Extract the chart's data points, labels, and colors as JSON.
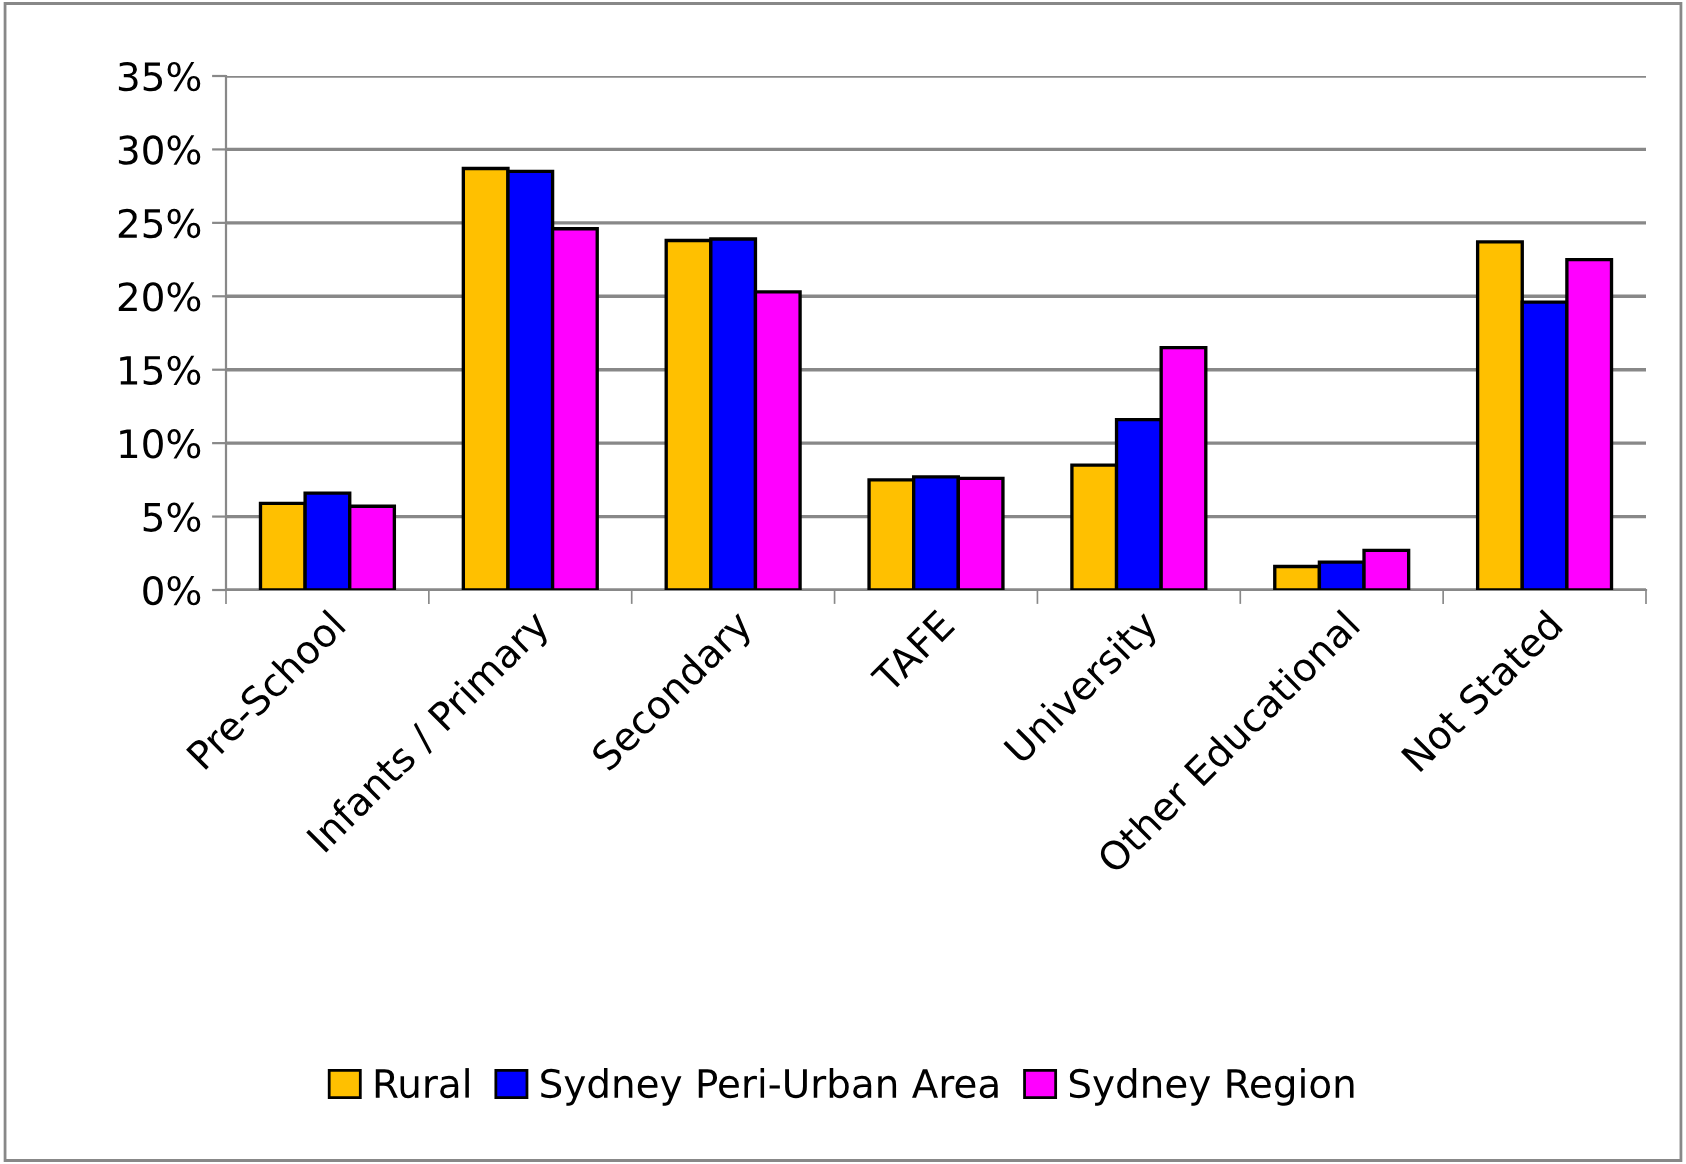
{
  "chart_data": {
    "type": "bar",
    "categories": [
      "Pre-School",
      "Infants / Primary",
      "Secondary",
      "TAFE",
      "University",
      "Other Educational",
      "Not Stated"
    ],
    "series": [
      {
        "name": "Rural",
        "color": "#ffc000",
        "values": [
          5.9,
          28.7,
          23.8,
          7.5,
          8.5,
          1.6,
          23.7
        ]
      },
      {
        "name": "Sydney Peri-Urban Area",
        "color": "#0000ff",
        "values": [
          6.6,
          28.5,
          23.9,
          7.7,
          11.6,
          1.9,
          19.6
        ]
      },
      {
        "name": "Sydney Region",
        "color": "#ff00ff",
        "values": [
          5.7,
          24.6,
          20.3,
          7.6,
          16.5,
          2.7,
          22.5
        ]
      }
    ],
    "ylim": [
      0,
      35
    ],
    "yticks": [
      {
        "value": 0,
        "label": "0%"
      },
      {
        "value": 5,
        "label": "5%"
      },
      {
        "value": 10,
        "label": "10%"
      },
      {
        "value": 15,
        "label": "15%"
      },
      {
        "value": 20,
        "label": "20%"
      },
      {
        "value": 25,
        "label": "25%"
      },
      {
        "value": 30,
        "label": "30%"
      },
      {
        "value": 35,
        "label": "35%"
      }
    ],
    "grid": "y",
    "legend": "bottom"
  }
}
